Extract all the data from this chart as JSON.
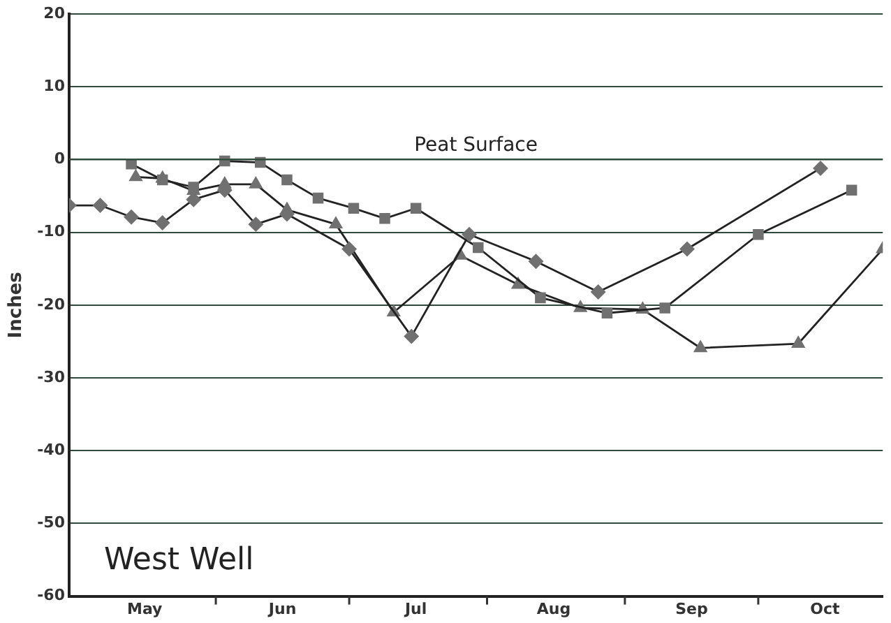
{
  "chart_data": {
    "type": "line",
    "ylabel": "Inches",
    "annotations": [
      "West Well"
    ],
    "xlim": [
      "--04-29",
      "--10-29"
    ],
    "xticks": [
      {
        "value": "--06-01",
        "label": null
      },
      {
        "value": "--07-01",
        "label": null
      },
      {
        "value": "--08-01",
        "label": null
      },
      {
        "value": "--09-01",
        "label": null
      },
      {
        "value": "--10-01",
        "label": null
      },
      {
        "value": "--05-16",
        "label": "May"
      },
      {
        "value": "--06-16",
        "label": "Jun"
      },
      {
        "value": "--07-16",
        "label": "Jul"
      },
      {
        "value": "--08-16",
        "label": "Aug"
      },
      {
        "value": "--09-16",
        "label": "Sep"
      },
      {
        "value": "--10-16",
        "label": "Oct"
      }
    ],
    "ylim": [
      -60,
      20
    ],
    "yticks": [
      -60,
      -50,
      -40,
      -30,
      -20,
      -10,
      0,
      10,
      20
    ],
    "grid": "y",
    "legend": false,
    "ref_lines": [
      {
        "axis": "y",
        "value": 0,
        "label": "Peat Surface"
      }
    ],
    "series": [
      {
        "color": "#707070",
        "marker": "diamond",
        "x": [
          "--04-29",
          "--05-06",
          "--05-13",
          "--05-20",
          "--05-27",
          "--06-03",
          "--06-10",
          "--06-17",
          "--07-01",
          "--07-15",
          "--07-28",
          "--08-12",
          "--08-26",
          "--09-15",
          "--10-15"
        ],
        "values": [
          -6.3,
          -6.3,
          -7.9,
          -8.7,
          -5.5,
          -4.2,
          -8.9,
          -7.5,
          -12.3,
          -24.3,
          -10.3,
          -14,
          -18.2,
          -12.3,
          -1.2
        ]
      },
      {
        "color": "#707070",
        "marker": "square",
        "x": [
          "--05-13",
          "--05-20",
          "--05-27",
          "--06-03",
          "--06-11",
          "--06-17",
          "--06-24",
          "--07-02",
          "--07-09",
          "--07-16",
          "--07-30",
          "--08-13",
          "--08-28",
          "--09-10",
          "--10-01",
          "--10-22"
        ],
        "values": [
          -0.6,
          -2.8,
          -3.8,
          -0.2,
          -0.4,
          -2.8,
          -5.3,
          -6.7,
          -8.1,
          -6.7,
          -12.1,
          -19,
          -21.1,
          -20.4,
          -10.3,
          -4.2
        ]
      },
      {
        "color": "#707070",
        "marker": "triangle",
        "x": [
          "--05-14",
          "--05-20",
          "--05-27",
          "--06-03",
          "--06-10",
          "--06-17",
          "--06-28",
          "--07-11",
          "--07-26",
          "--08-08",
          "--08-22",
          "--09-05",
          "--09-18",
          "--10-10",
          "--10-29"
        ],
        "values": [
          -2.4,
          -2.6,
          -4.3,
          -3.4,
          -3.4,
          -6.9,
          -8.9,
          -21,
          -13.2,
          -17.2,
          -20.4,
          -20.6,
          -25.9,
          -25.3,
          -12.3
        ]
      }
    ]
  }
}
